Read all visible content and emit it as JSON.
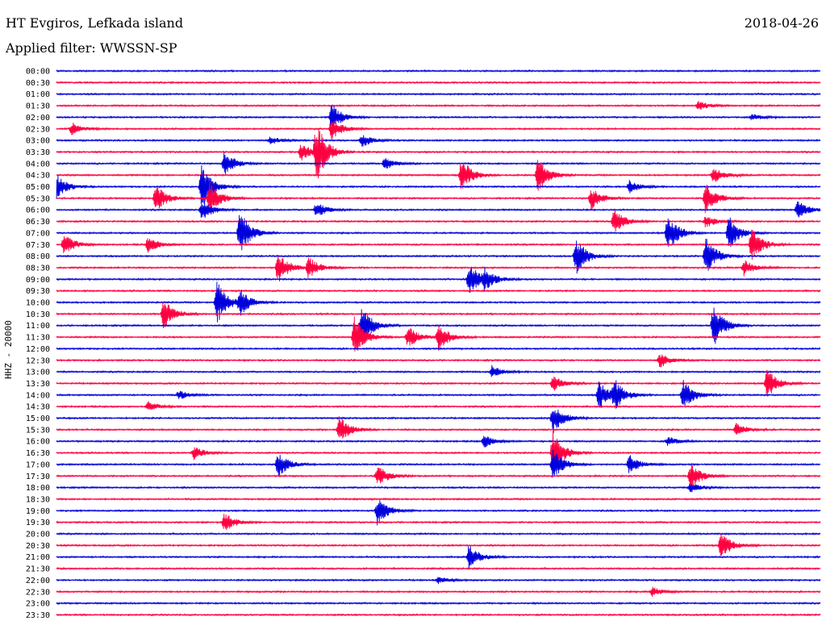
{
  "header": {
    "station": "HT Evgiros, Lefkada island",
    "filter": "Applied filter: WWSSN-SP",
    "date": "2018-04-26"
  },
  "channel_label": "HHZ - 20000",
  "colors": {
    "blue": "#0000dd",
    "red": "#ff0040"
  },
  "chart_data": {
    "type": "line",
    "title": "HT Evgiros, Lefkada island",
    "subtitle": "Applied filter: WWSSN-SP",
    "ylabel": "HHZ - 20000",
    "xlabel": "",
    "row_labels": [
      "00:00",
      "00:30",
      "01:00",
      "01:30",
      "02:00",
      "02:30",
      "03:00",
      "03:30",
      "04:00",
      "04:30",
      "05:00",
      "05:30",
      "06:00",
      "06:30",
      "07:00",
      "07:30",
      "08:00",
      "08:30",
      "09:00",
      "09:30",
      "10:00",
      "10:30",
      "11:00",
      "11:30",
      "12:00",
      "12:30",
      "13:00",
      "13:30",
      "14:00",
      "14:30",
      "15:00",
      "15:30",
      "16:00",
      "16:30",
      "17:00",
      "17:30",
      "18:00",
      "18:30",
      "19:00",
      "19:30",
      "20:00",
      "20:30",
      "21:00",
      "21:30",
      "22:00",
      "22:30",
      "23:00",
      "23:30"
    ],
    "row_colors": [
      "blue",
      "red"
    ],
    "row_span_minutes": 30,
    "events": [
      {
        "row": 3,
        "pos": 0.84,
        "amp": 6
      },
      {
        "row": 4,
        "pos": 0.36,
        "amp": 18
      },
      {
        "row": 4,
        "pos": 0.91,
        "amp": 4
      },
      {
        "row": 5,
        "pos": 0.02,
        "amp": 8
      },
      {
        "row": 5,
        "pos": 0.36,
        "amp": 14
      },
      {
        "row": 6,
        "pos": 0.4,
        "amp": 8
      },
      {
        "row": 6,
        "pos": 0.28,
        "amp": 5
      },
      {
        "row": 7,
        "pos": 0.32,
        "amp": 12
      },
      {
        "row": 7,
        "pos": 0.34,
        "amp": 40
      },
      {
        "row": 8,
        "pos": 0.22,
        "amp": 16
      },
      {
        "row": 8,
        "pos": 0.43,
        "amp": 8
      },
      {
        "row": 9,
        "pos": 0.53,
        "amp": 22
      },
      {
        "row": 9,
        "pos": 0.63,
        "amp": 22
      },
      {
        "row": 9,
        "pos": 0.86,
        "amp": 10
      },
      {
        "row": 10,
        "pos": 0.0,
        "amp": 16
      },
      {
        "row": 10,
        "pos": 0.19,
        "amp": 28
      },
      {
        "row": 10,
        "pos": 0.75,
        "amp": 8
      },
      {
        "row": 11,
        "pos": 0.13,
        "amp": 18
      },
      {
        "row": 11,
        "pos": 0.2,
        "amp": 22
      },
      {
        "row": 11,
        "pos": 0.7,
        "amp": 14
      },
      {
        "row": 11,
        "pos": 0.85,
        "amp": 22
      },
      {
        "row": 12,
        "pos": 0.19,
        "amp": 14
      },
      {
        "row": 12,
        "pos": 0.34,
        "amp": 10
      },
      {
        "row": 12,
        "pos": 0.97,
        "amp": 12
      },
      {
        "row": 13,
        "pos": 0.73,
        "amp": 16
      },
      {
        "row": 13,
        "pos": 0.85,
        "amp": 8
      },
      {
        "row": 14,
        "pos": 0.24,
        "amp": 30
      },
      {
        "row": 14,
        "pos": 0.8,
        "amp": 26
      },
      {
        "row": 14,
        "pos": 0.88,
        "amp": 22
      },
      {
        "row": 15,
        "pos": 0.01,
        "amp": 14
      },
      {
        "row": 15,
        "pos": 0.12,
        "amp": 10
      },
      {
        "row": 15,
        "pos": 0.91,
        "amp": 22
      },
      {
        "row": 16,
        "pos": 0.68,
        "amp": 24
      },
      {
        "row": 16,
        "pos": 0.85,
        "amp": 24
      },
      {
        "row": 17,
        "pos": 0.29,
        "amp": 22
      },
      {
        "row": 17,
        "pos": 0.33,
        "amp": 14
      },
      {
        "row": 17,
        "pos": 0.9,
        "amp": 10
      },
      {
        "row": 18,
        "pos": 0.54,
        "amp": 22
      },
      {
        "row": 18,
        "pos": 0.56,
        "amp": 12
      },
      {
        "row": 20,
        "pos": 0.21,
        "amp": 28
      },
      {
        "row": 20,
        "pos": 0.24,
        "amp": 16
      },
      {
        "row": 21,
        "pos": 0.14,
        "amp": 20
      },
      {
        "row": 22,
        "pos": 0.4,
        "amp": 26
      },
      {
        "row": 22,
        "pos": 0.86,
        "amp": 28
      },
      {
        "row": 23,
        "pos": 0.39,
        "amp": 26
      },
      {
        "row": 23,
        "pos": 0.46,
        "amp": 14
      },
      {
        "row": 23,
        "pos": 0.5,
        "amp": 18
      },
      {
        "row": 25,
        "pos": 0.79,
        "amp": 10
      },
      {
        "row": 26,
        "pos": 0.57,
        "amp": 8
      },
      {
        "row": 27,
        "pos": 0.65,
        "amp": 10
      },
      {
        "row": 27,
        "pos": 0.93,
        "amp": 20
      },
      {
        "row": 28,
        "pos": 0.16,
        "amp": 6
      },
      {
        "row": 28,
        "pos": 0.71,
        "amp": 20
      },
      {
        "row": 28,
        "pos": 0.73,
        "amp": 18
      },
      {
        "row": 28,
        "pos": 0.82,
        "amp": 20
      },
      {
        "row": 29,
        "pos": 0.12,
        "amp": 6
      },
      {
        "row": 30,
        "pos": 0.65,
        "amp": 20
      },
      {
        "row": 31,
        "pos": 0.37,
        "amp": 18
      },
      {
        "row": 31,
        "pos": 0.89,
        "amp": 8
      },
      {
        "row": 32,
        "pos": 0.56,
        "amp": 8
      },
      {
        "row": 32,
        "pos": 0.8,
        "amp": 6
      },
      {
        "row": 33,
        "pos": 0.65,
        "amp": 30
      },
      {
        "row": 33,
        "pos": 0.18,
        "amp": 8
      },
      {
        "row": 34,
        "pos": 0.29,
        "amp": 16
      },
      {
        "row": 34,
        "pos": 0.65,
        "amp": 20
      },
      {
        "row": 34,
        "pos": 0.75,
        "amp": 12
      },
      {
        "row": 35,
        "pos": 0.42,
        "amp": 14
      },
      {
        "row": 35,
        "pos": 0.83,
        "amp": 18
      },
      {
        "row": 36,
        "pos": 0.83,
        "amp": 6
      },
      {
        "row": 38,
        "pos": 0.42,
        "amp": 18
      },
      {
        "row": 39,
        "pos": 0.22,
        "amp": 12
      },
      {
        "row": 41,
        "pos": 0.87,
        "amp": 18
      },
      {
        "row": 42,
        "pos": 0.54,
        "amp": 16
      },
      {
        "row": 44,
        "pos": 0.5,
        "amp": 4
      },
      {
        "row": 45,
        "pos": 0.78,
        "amp": 6
      }
    ]
  }
}
